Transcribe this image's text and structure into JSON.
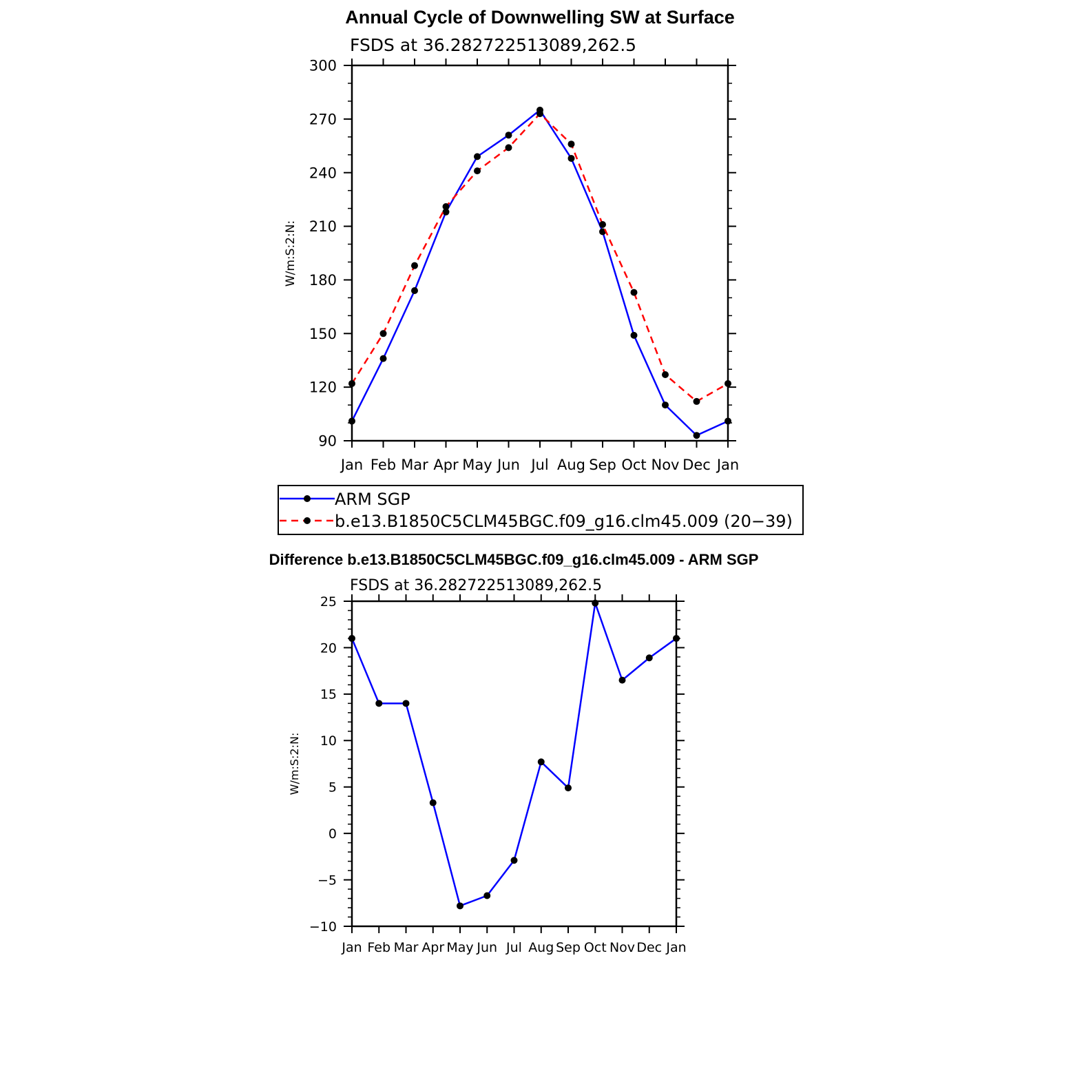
{
  "chart_data": [
    {
      "type": "line",
      "title": "Annual Cycle of Downwelling SW at Surface",
      "subtitle": "FSDS at 36.282722513089,262.5",
      "ylabel": "W/m:S:2:N:",
      "xlabel": "",
      "categories": [
        "Jan",
        "Feb",
        "Mar",
        "Apr",
        "May",
        "Jun",
        "Jul",
        "Aug",
        "Sep",
        "Oct",
        "Nov",
        "Dec",
        "Jan"
      ],
      "ylim": [
        90,
        300
      ],
      "yticks": [
        "90",
        "120",
        "150",
        "180",
        "210",
        "240",
        "270",
        "300"
      ],
      "series": [
        {
          "name": "ARM SGP",
          "color": "#0000ff",
          "style": "solid",
          "values": [
            101,
            136,
            174,
            218,
            249,
            261,
            275,
            248,
            207,
            149,
            110,
            93,
            101
          ]
        },
        {
          "name": "b.e13.B1850C5CLM45BGC.f09_g16.clm45.009 (20−39)",
          "color": "#ff0000",
          "style": "dashed",
          "values": [
            122,
            150,
            188,
            221,
            241,
            254,
            273,
            256,
            211,
            173,
            127,
            112,
            122
          ]
        }
      ],
      "legend_position": "below"
    },
    {
      "type": "line",
      "title": "Difference b.e13.B1850C5CLM45BGC.f09_g16.clm45.009 - ARM SGP",
      "subtitle": "FSDS at 36.282722513089,262.5",
      "ylabel": "W/m:S:2:N:",
      "xlabel": "",
      "categories": [
        "Jan",
        "Feb",
        "Mar",
        "Apr",
        "May",
        "Jun",
        "Jul",
        "Aug",
        "Sep",
        "Oct",
        "Nov",
        "Dec",
        "Jan"
      ],
      "ylim": [
        -10,
        25
      ],
      "yticks": [
        "−10",
        "−5",
        "0",
        "5",
        "10",
        "15",
        "20",
        "25"
      ],
      "series": [
        {
          "color": "#0000ff",
          "style": "solid",
          "values": [
            21,
            14,
            14,
            3.3,
            -7.8,
            -6.7,
            -2.9,
            7.7,
            4.9,
            24.8,
            16.5,
            18.9,
            21
          ]
        }
      ]
    }
  ]
}
